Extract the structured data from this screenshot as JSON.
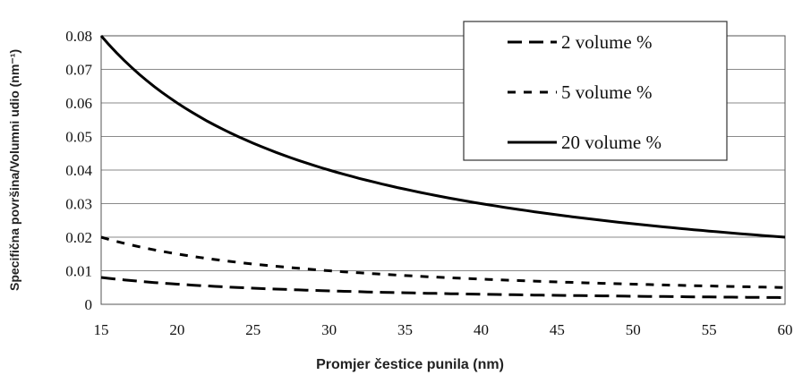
{
  "chart_data": {
    "type": "line",
    "xlabel": "Promjer čestice punila (nm)",
    "ylabel": "Specifična površina/Volumni udio (nm⁻¹)",
    "xlim": [
      15,
      60
    ],
    "ylim": [
      0,
      0.08
    ],
    "xticks": [
      "15",
      "20",
      "25",
      "30",
      "35",
      "40",
      "45",
      "50",
      "55",
      "60"
    ],
    "yticks": [
      "0",
      "0.01",
      "0.02",
      "0.03",
      "0.04",
      "0.05",
      "0.06",
      "0.07",
      "0.08"
    ],
    "grid": "horizontal",
    "legend_position": "top-right",
    "x": [
      15,
      20,
      25,
      30,
      35,
      40,
      45,
      50,
      55,
      60
    ],
    "series": [
      {
        "name": "2 volume %",
        "style": "long-dash",
        "color": "#000000",
        "values": [
          0.008,
          0.006,
          0.0048,
          0.004,
          0.0034,
          0.003,
          0.0027,
          0.0024,
          0.0022,
          0.002
        ]
      },
      {
        "name": "5 volume %",
        "style": "short-dash",
        "color": "#000000",
        "values": [
          0.02,
          0.015,
          0.012,
          0.01,
          0.0086,
          0.0075,
          0.0067,
          0.006,
          0.0055,
          0.005
        ]
      },
      {
        "name": "20 volume %",
        "style": "solid",
        "color": "#000000",
        "values": [
          0.08,
          0.06,
          0.048,
          0.04,
          0.0343,
          0.03,
          0.0267,
          0.024,
          0.0218,
          0.02
        ]
      }
    ]
  }
}
